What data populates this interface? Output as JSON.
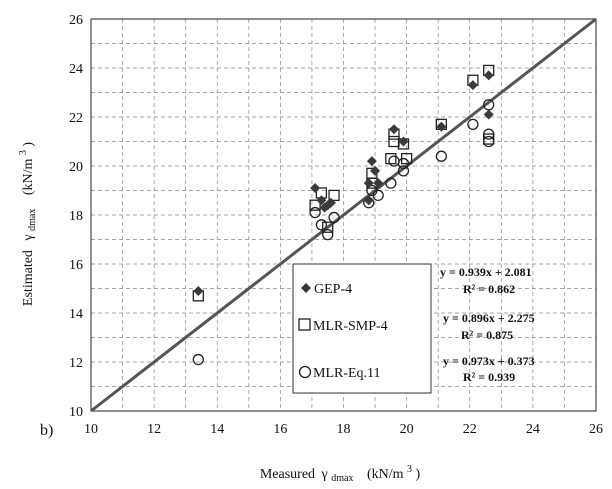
{
  "panel_label": "b)",
  "chart_data": {
    "type": "scatter",
    "xlabel": "Measured",
    "ylabel": "Estimated",
    "axis_symbol": "γ",
    "axis_subscript": "dmax",
    "axis_unit_open": "(kN/m",
    "axis_unit_sup": "3",
    "axis_unit_close": ")",
    "xlim": [
      10,
      26
    ],
    "ylim": [
      10,
      26
    ],
    "x_ticks": [
      "10",
      "12",
      "14",
      "16",
      "18",
      "20",
      "22",
      "24",
      "26"
    ],
    "y_ticks": [
      "10",
      "12",
      "14",
      "16",
      "18",
      "20",
      "22",
      "24",
      "26"
    ],
    "grid": "dashed",
    "reference_line": {
      "x": [
        10,
        26
      ],
      "y": [
        10,
        26
      ],
      "color": "#555555"
    },
    "legend_position": "inside-bottom-center",
    "series": [
      {
        "name": "GEP-4",
        "marker": "diamond",
        "color": "#3a3a3a",
        "points": [
          [
            13.4,
            14.9
          ],
          [
            17.1,
            19.1
          ],
          [
            17.3,
            18.6
          ],
          [
            17.4,
            18.3
          ],
          [
            17.5,
            18.4
          ],
          [
            17.6,
            18.5
          ],
          [
            18.8,
            19.3
          ],
          [
            18.9,
            20.2
          ],
          [
            18.8,
            18.6
          ],
          [
            19.0,
            19.8
          ],
          [
            19.1,
            19.3
          ],
          [
            19.6,
            21.5
          ],
          [
            19.9,
            21.0
          ],
          [
            21.1,
            21.6
          ],
          [
            22.1,
            23.3
          ],
          [
            22.6,
            23.7
          ],
          [
            22.6,
            22.1
          ]
        ],
        "equation": "y = 0.939x + 2.081",
        "r2": "R² = 0.862"
      },
      {
        "name": "MLR-SMP-4",
        "marker": "square",
        "color": "#222222",
        "points": [
          [
            13.4,
            14.7
          ],
          [
            17.1,
            18.4
          ],
          [
            17.3,
            18.9
          ],
          [
            17.5,
            17.5
          ],
          [
            17.7,
            18.8
          ],
          [
            18.9,
            19.7
          ],
          [
            18.9,
            19.3
          ],
          [
            19.5,
            20.3
          ],
          [
            19.6,
            21.0
          ],
          [
            19.6,
            21.3
          ],
          [
            19.9,
            20.9
          ],
          [
            20.0,
            20.3
          ],
          [
            21.1,
            21.7
          ],
          [
            22.1,
            23.5
          ],
          [
            22.6,
            23.9
          ],
          [
            22.6,
            21.1
          ]
        ],
        "equation": "y = 0.896x + 2.275",
        "r2": "R² = 0.875"
      },
      {
        "name": "MLR-Eq.11",
        "marker": "circle",
        "color": "#222222",
        "points": [
          [
            13.4,
            12.1
          ],
          [
            17.1,
            18.1
          ],
          [
            17.3,
            17.6
          ],
          [
            17.5,
            17.2
          ],
          [
            17.7,
            17.9
          ],
          [
            18.8,
            18.5
          ],
          [
            18.9,
            19.0
          ],
          [
            19.1,
            18.8
          ],
          [
            19.5,
            19.3
          ],
          [
            19.6,
            20.2
          ],
          [
            19.9,
            19.8
          ],
          [
            19.9,
            20.1
          ],
          [
            21.1,
            20.4
          ],
          [
            22.1,
            21.7
          ],
          [
            22.6,
            22.5
          ],
          [
            22.6,
            21.3
          ],
          [
            22.6,
            21.0
          ]
        ],
        "equation": "y = 0.973x + 0.373",
        "r2": "R² = 0.939"
      }
    ]
  }
}
